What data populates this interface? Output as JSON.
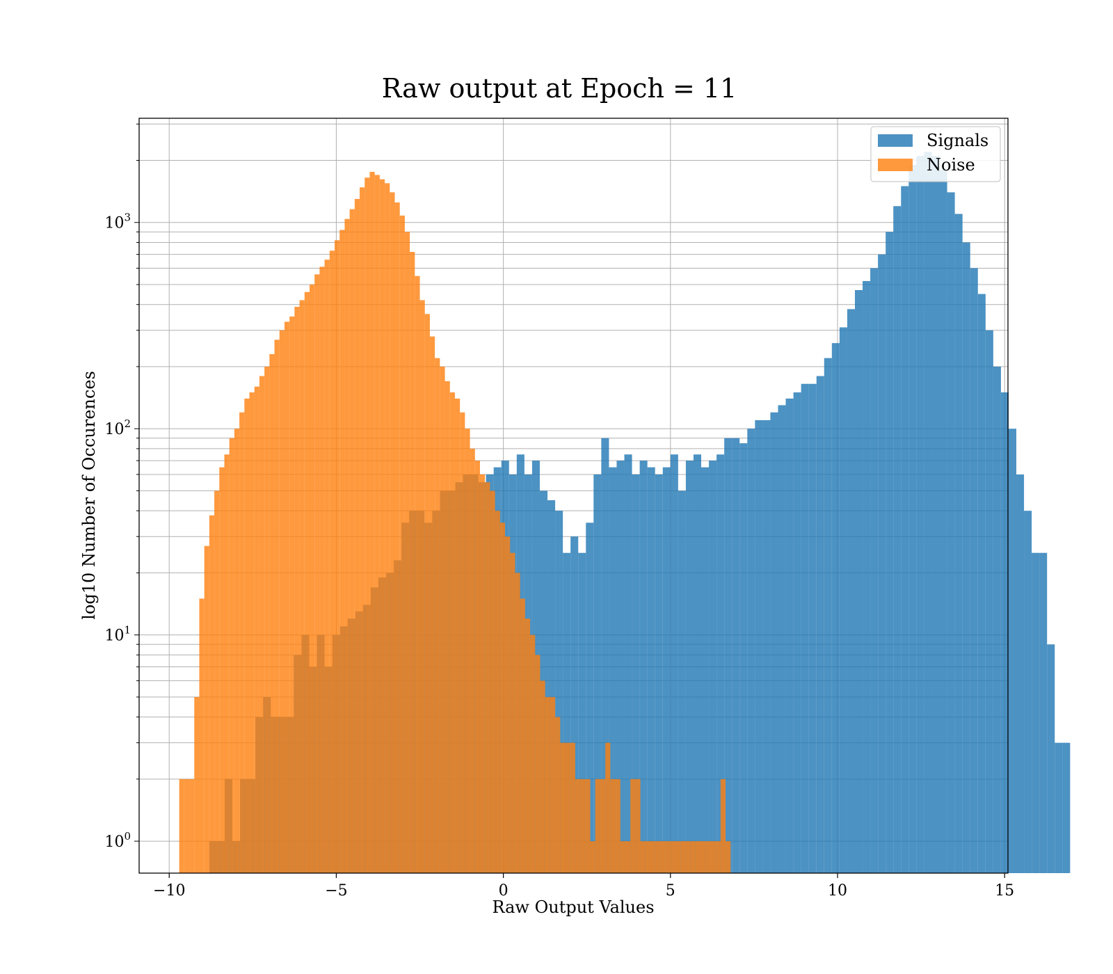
{
  "chart_data": {
    "type": "histogram",
    "title": "Raw output at Epoch = 11",
    "xlabel": "Raw Output Values",
    "ylabel": "log10 Number of Occurences",
    "xlim": [
      -10.9,
      15.1
    ],
    "ylim": [
      0.7,
      3200
    ],
    "yscale": "log",
    "grid": true,
    "legend_position": "top-right",
    "x_ticks": [
      -10,
      -5,
      0,
      5,
      10,
      15
    ],
    "x_tick_labels": [
      "−10",
      "−5",
      "0",
      "5",
      "10",
      "15"
    ],
    "y_ticks": [
      1,
      10,
      100,
      1000
    ],
    "y_tick_labels": [
      {
        "base": "10",
        "exp": "0"
      },
      {
        "base": "10",
        "exp": "1"
      },
      {
        "base": "10",
        "exp": "2"
      },
      {
        "base": "10",
        "exp": "3"
      }
    ],
    "series": [
      {
        "name": "Signals",
        "color": "#1f77b4",
        "bin_start": -8.8,
        "bin_width": 0.23,
        "counts": [
          1,
          1,
          2,
          1,
          2,
          2,
          4,
          5,
          4,
          4,
          4,
          8,
          10,
          7,
          10,
          7,
          10,
          11,
          12,
          13,
          14,
          17,
          19,
          20,
          23,
          35,
          40,
          40,
          35,
          40,
          50,
          50,
          55,
          60,
          60,
          55,
          60,
          65,
          70,
          60,
          75,
          60,
          70,
          50,
          45,
          40,
          25,
          30,
          25,
          35,
          60,
          90,
          65,
          70,
          75,
          60,
          70,
          65,
          60,
          65,
          75,
          50,
          70,
          75,
          65,
          70,
          75,
          90,
          90,
          85,
          100,
          110,
          110,
          120,
          130,
          140,
          150,
          165,
          165,
          180,
          220,
          260,
          310,
          380,
          470,
          520,
          600,
          700,
          900,
          1200,
          1500,
          1900,
          2100,
          2200,
          2100,
          1800,
          1400,
          1100,
          800,
          600,
          450,
          300,
          200,
          150,
          100,
          60,
          40,
          25,
          25,
          9,
          3,
          3
        ]
      },
      {
        "name": "Noise",
        "color": "#ff7f0e",
        "bin_start": -9.7,
        "bin_width": 0.15,
        "counts": [
          2,
          2,
          2,
          5,
          15,
          27,
          38,
          50,
          65,
          75,
          90,
          100,
          120,
          140,
          150,
          160,
          180,
          200,
          230,
          270,
          300,
          330,
          350,
          390,
          420,
          460,
          500,
          560,
          610,
          660,
          730,
          820,
          920,
          1040,
          1160,
          1300,
          1480,
          1650,
          1760,
          1700,
          1620,
          1550,
          1400,
          1250,
          1080,
          900,
          720,
          550,
          420,
          360,
          280,
          220,
          200,
          170,
          150,
          140,
          120,
          100,
          80,
          70,
          60,
          55,
          50,
          40,
          35,
          30,
          25,
          20,
          15,
          12,
          10,
          8,
          6,
          5,
          5,
          4,
          3,
          3,
          3,
          2,
          2,
          2,
          1,
          2,
          2,
          3,
          2,
          2,
          1,
          1,
          2,
          2,
          1,
          1,
          1,
          1,
          1,
          1,
          1,
          1,
          1,
          1,
          1,
          1,
          1,
          1,
          1,
          1,
          2,
          1
        ]
      }
    ]
  }
}
